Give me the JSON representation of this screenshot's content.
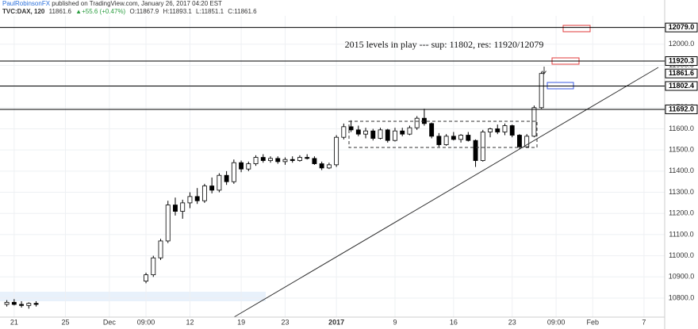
{
  "header": {
    "author": "PaulRobinsonFX",
    "published": "published on TradingView.com, January 26, 2017 04:20 EST",
    "symbol": "TVC:DAX, 120",
    "last": "11861.6",
    "change": "▲+55.6 (+0.47%)",
    "open": "O:11867.9",
    "high": "H:11893.1",
    "low": "L:11851.1",
    "close": "C:11861.6"
  },
  "chart_data": {
    "type": "candlestick",
    "annotation": "2015 levels in play --- sup: 11802, res: 11920/12079",
    "up_color": "#ffffff",
    "down_color": "#000000",
    "grid": true,
    "ylim": [
      10710,
      12134
    ],
    "yticks": [
      {
        "value": 10800,
        "label": "10800.0"
      },
      {
        "value": 10900,
        "label": "10900.0"
      },
      {
        "value": 11000,
        "label": "11000.0"
      },
      {
        "value": 11100,
        "label": "11100.0"
      },
      {
        "value": 11200,
        "label": "11200.0"
      },
      {
        "value": 11300,
        "label": "11300.0"
      },
      {
        "value": 11400,
        "label": "11400.0"
      },
      {
        "value": 11500,
        "label": "11500.0"
      },
      {
        "value": 11600,
        "label": "11600.0"
      },
      {
        "value": 11700,
        "label": "11700.0"
      },
      {
        "value": 11800,
        "label": "11800.0"
      },
      {
        "value": 11900,
        "label": "11900.0"
      },
      {
        "value": 12000,
        "label": "12000.0"
      }
    ],
    "levels": [
      {
        "value": 12079,
        "label": "12079.0",
        "line": true
      },
      {
        "value": 11920.3,
        "label": "11920.3",
        "line": true
      },
      {
        "value": 11861.6,
        "label": "11861.6",
        "line": false
      },
      {
        "value": 11802.4,
        "label": "11802.4",
        "line": true
      },
      {
        "value": 11692,
        "label": "11692.0",
        "line": true
      }
    ],
    "categories": [
      null,
      "21",
      null,
      null,
      null,
      null,
      null,
      null,
      "25",
      null,
      null,
      null,
      null,
      null,
      "Dec",
      null,
      null,
      null,
      null,
      "09:00",
      null,
      null,
      null,
      null,
      null,
      "12",
      null,
      null,
      null,
      null,
      null,
      null,
      "19",
      null,
      null,
      null,
      null,
      null,
      "23",
      null,
      null,
      null,
      null,
      null,
      null,
      "2017",
      null,
      null,
      null,
      null,
      null,
      null,
      null,
      "9",
      null,
      null,
      null,
      null,
      null,
      null,
      null,
      "16",
      null,
      null,
      null,
      null,
      null,
      null,
      null,
      "23",
      null,
      null,
      null,
      null,
      null,
      "09:00",
      null,
      null,
      null,
      null,
      "Feb",
      null,
      null,
      null,
      null,
      null,
      null,
      "7",
      null,
      null
    ],
    "open": [
      10770,
      10780,
      10770,
      10765,
      10775,
      null,
      null,
      null,
      null,
      null,
      null,
      null,
      null,
      null,
      null,
      null,
      null,
      null,
      null,
      10880,
      10910,
      10990,
      11070,
      11240,
      11210,
      11250,
      11280,
      11260,
      11330,
      11310,
      11380,
      11350,
      11440,
      11410,
      11435,
      11465,
      11450,
      11460,
      11445,
      11455,
      11450,
      11465,
      11460,
      11435,
      11415,
      11430,
      11560,
      11610,
      11595,
      11575,
      11590,
      11555,
      11595,
      11545,
      11590,
      11575,
      11605,
      11650,
      11625,
      11565,
      11525,
      11565,
      11550,
      11570,
      11545,
      11450,
      11585,
      11600,
      11585,
      11615,
      11570,
      11515,
      11565,
      11700,
      null,
      null,
      null,
      null,
      null,
      null,
      null,
      null,
      null,
      null,
      null,
      null,
      null,
      null,
      null,
      null
    ],
    "high": [
      10790,
      10795,
      10785,
      10780,
      10785,
      null,
      null,
      null,
      null,
      null,
      null,
      null,
      null,
      null,
      null,
      null,
      null,
      null,
      null,
      10920,
      11000,
      11080,
      11260,
      11275,
      11265,
      11300,
      11320,
      11340,
      11370,
      11390,
      11400,
      11455,
      11450,
      11445,
      11475,
      11480,
      11470,
      11470,
      11465,
      11470,
      11475,
      11480,
      11470,
      11445,
      11440,
      11570,
      11625,
      11640,
      11615,
      11605,
      11600,
      11605,
      11600,
      11605,
      11605,
      11615,
      11660,
      11695,
      11630,
      11580,
      11575,
      11585,
      11575,
      11585,
      11550,
      11595,
      11605,
      11620,
      11625,
      11620,
      11575,
      11575,
      11710,
      11870,
      null,
      null,
      null,
      null,
      null,
      null,
      null,
      null,
      null,
      null,
      null,
      null,
      null,
      null,
      null,
      null
    ],
    "low": [
      10760,
      10765,
      10755,
      10750,
      10760,
      null,
      null,
      null,
      null,
      null,
      null,
      null,
      null,
      null,
      null,
      null,
      null,
      null,
      null,
      10870,
      10900,
      10980,
      11060,
      11190,
      11175,
      11225,
      11245,
      11250,
      11295,
      11300,
      11335,
      11340,
      11395,
      11400,
      11425,
      11440,
      11440,
      11435,
      11430,
      11440,
      11445,
      11455,
      11430,
      11405,
      11410,
      11420,
      11550,
      11585,
      11565,
      11555,
      11545,
      11550,
      11535,
      11540,
      11565,
      11570,
      11595,
      11615,
      11555,
      11515,
      11520,
      11545,
      11535,
      11540,
      11420,
      11445,
      11560,
      11575,
      11570,
      11560,
      11505,
      11510,
      11560,
      11695,
      null,
      null,
      null,
      null,
      null,
      null,
      null,
      null,
      null,
      null,
      null,
      null,
      null,
      null,
      null,
      null
    ],
    "close": [
      10780,
      10770,
      10765,
      10775,
      10770,
      null,
      null,
      null,
      null,
      null,
      null,
      null,
      null,
      null,
      null,
      null,
      null,
      null,
      null,
      10910,
      10990,
      11070,
      11240,
      11210,
      11250,
      11280,
      11260,
      11330,
      11310,
      11380,
      11350,
      11440,
      11410,
      11435,
      11465,
      11450,
      11460,
      11445,
      11455,
      11450,
      11465,
      11460,
      11435,
      11415,
      11430,
      11560,
      11610,
      11595,
      11575,
      11590,
      11555,
      11595,
      11545,
      11590,
      11575,
      11605,
      11650,
      11625,
      11565,
      11525,
      11565,
      11550,
      11570,
      11545,
      11450,
      11585,
      11600,
      11585,
      11615,
      11570,
      11515,
      11565,
      11700,
      11861.6,
      null,
      null,
      null,
      null,
      null,
      null,
      null,
      null,
      null,
      null,
      null,
      null,
      null,
      null,
      null,
      null
    ]
  }
}
